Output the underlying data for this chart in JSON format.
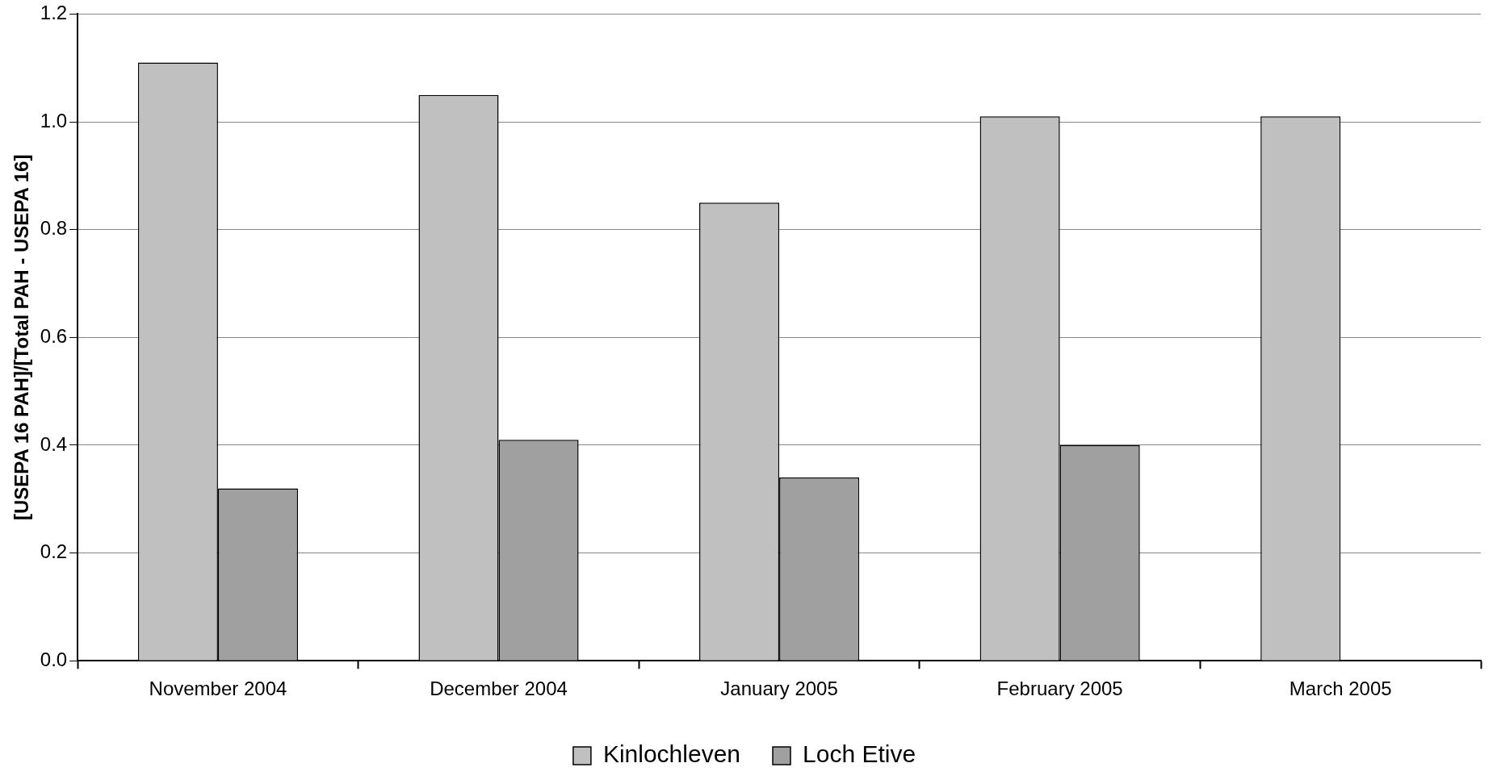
{
  "chart_data": {
    "type": "bar",
    "ylabel": "[USEPA 16 PAH]/[Total PAH - USEPA 16]",
    "categories": [
      "November 2004",
      "December 2004",
      "January 2005",
      "February 2005",
      "March 2005"
    ],
    "series": [
      {
        "name": "Kinlochleven",
        "color": "#c0c0c0",
        "values": [
          1.11,
          1.05,
          0.85,
          1.01,
          1.01
        ]
      },
      {
        "name": "Loch Etive",
        "color": "#a0a0a0",
        "values": [
          0.32,
          0.41,
          0.34,
          0.4,
          null
        ]
      }
    ],
    "ylim": [
      0,
      1.2
    ],
    "yticks": [
      {
        "value": 0,
        "label": "0.0"
      },
      0.2,
      0.4,
      0.6,
      0.8,
      {
        "value": 1,
        "label": "1.0"
      },
      1.2
    ],
    "grid": "y",
    "legend": "bottom"
  }
}
